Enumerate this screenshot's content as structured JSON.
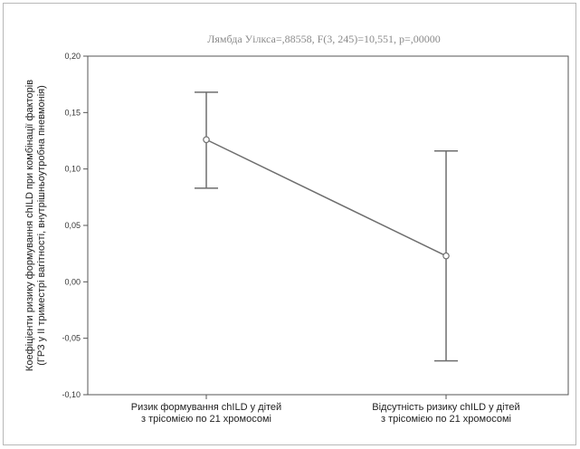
{
  "chart_data": {
    "type": "line",
    "title": "Лямбда Уілкса=,88558, F(3, 245)=10,551, p=,00000",
    "ylabel": [
      "Коефіцієнти ризику формування chILD  при комбінації факторів",
      "(ГРЗ у ІІ триместрі вагітності, внутрішньоутробна пневмонія)"
    ],
    "xlabel": "",
    "ylim": [
      -0.1,
      0.2
    ],
    "yticks": [
      -0.1,
      -0.05,
      0.0,
      0.05,
      0.1,
      0.15,
      0.2
    ],
    "ytick_labels": [
      "-0,10",
      "-0,05",
      "0,00",
      "0,05",
      "0,10",
      "0,15",
      "0,20"
    ],
    "categories": [
      [
        "Ризик формування chILD у дітей",
        "з трісомією по 21 хромосомі"
      ],
      [
        "Відсутність ризику chILD у дітей",
        "з трісомією по 21 хромосомі"
      ]
    ],
    "series": [
      {
        "values": [
          0.126,
          0.023
        ],
        "lower": [
          0.083,
          -0.07
        ],
        "upper": [
          0.168,
          0.116
        ]
      }
    ],
    "grid": false,
    "colors": {
      "line": "#6e6e6e",
      "marker_fill": "#ffffff",
      "axis": "#555555"
    }
  }
}
